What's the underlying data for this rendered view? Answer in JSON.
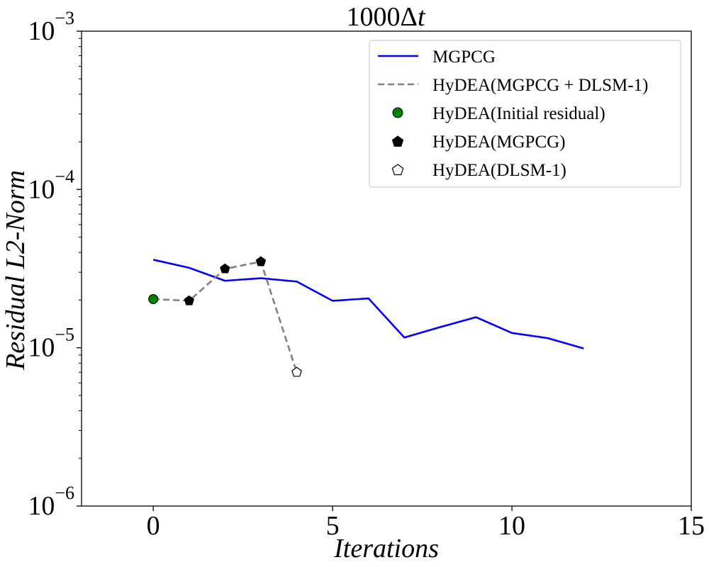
{
  "chart_data": {
    "type": "line",
    "title": "1000Δt",
    "title_parts": {
      "base": "1000Δ",
      "var": "t"
    },
    "xlabel": "Iterations",
    "ylabel": "Residual L2-Norm",
    "yscale": "log",
    "xlim": [
      -2,
      15
    ],
    "ylim": [
      1e-06,
      0.001
    ],
    "xticks": [
      0,
      5,
      10,
      15
    ],
    "xtick_labels": [
      "0",
      "5",
      "10",
      "15"
    ],
    "yticks": [
      {
        "value": 1e-06,
        "base": "10",
        "exp": "−6"
      },
      {
        "value": 1e-05,
        "base": "10",
        "exp": "−5"
      },
      {
        "value": 0.0001,
        "base": "10",
        "exp": "−4"
      },
      {
        "value": 0.001,
        "base": "10",
        "exp": "−3"
      }
    ],
    "legend_position": "top-right",
    "series": [
      {
        "name": "MGPCG",
        "style": "solid",
        "color": "#0000ff",
        "x": [
          0,
          1,
          2,
          3,
          4,
          5,
          6,
          7,
          8,
          9,
          10,
          11,
          12
        ],
        "y": [
          3.6e-05,
          3.2e-05,
          2.65e-05,
          2.75e-05,
          2.62e-05,
          1.98e-05,
          2.05e-05,
          1.16e-05,
          1.35e-05,
          1.56e-05,
          1.24e-05,
          1.15e-05,
          9.9e-06
        ]
      },
      {
        "name": "HyDEA(MGPCG + DLSM-1)",
        "style": "dashed",
        "color": "#808080",
        "x": [
          0,
          1,
          2,
          3,
          4
        ],
        "y": [
          2.03e-05,
          1.98e-05,
          3.15e-05,
          3.5e-05,
          7e-06
        ]
      },
      {
        "name": "HyDEA(Initial residual)",
        "marker": "circle",
        "color": "#008000",
        "x": [
          0
        ],
        "y": [
          2.03e-05
        ]
      },
      {
        "name": "HyDEA(MGPCG)",
        "marker": "pentagon-filled",
        "color": "#000000",
        "x": [
          1,
          2,
          3
        ],
        "y": [
          1.98e-05,
          3.15e-05,
          3.5e-05
        ]
      },
      {
        "name": "HyDEA(DLSM-1)",
        "marker": "pentagon-open",
        "color": "#000000",
        "x": [
          4
        ],
        "y": [
          7e-06
        ]
      }
    ]
  }
}
